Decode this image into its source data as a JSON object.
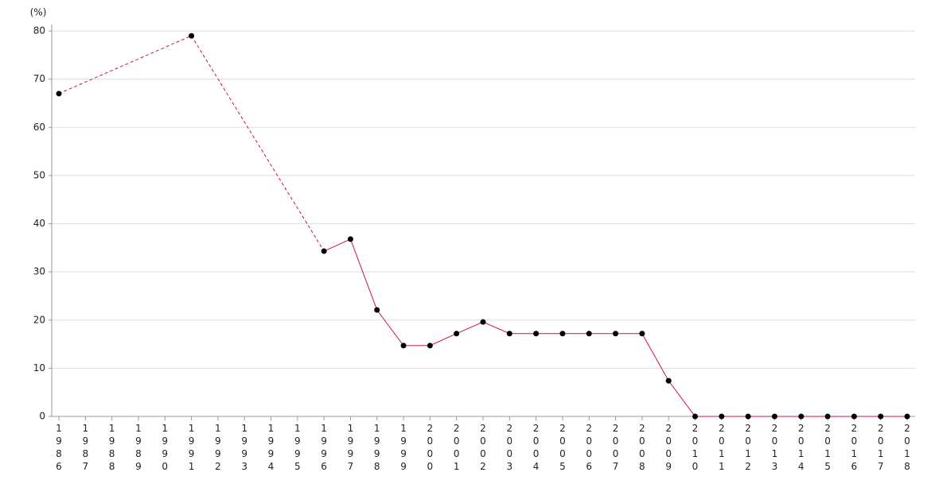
{
  "chart_data": {
    "type": "line",
    "y_axis_label": "(%)",
    "categories": [
      "1986",
      "1987",
      "1988",
      "1989",
      "1990",
      "1991",
      "1992",
      "1993",
      "1994",
      "1995",
      "1996",
      "1997",
      "1998",
      "1999",
      "2000",
      "2001",
      "2002",
      "2003",
      "2004",
      "2005",
      "2006",
      "2007",
      "2008",
      "2009",
      "2010",
      "2011",
      "2012",
      "2013",
      "2014",
      "2015",
      "2016",
      "2017",
      "2018"
    ],
    "series": [
      {
        "color": "#d0104c",
        "values": [
          67,
          null,
          null,
          null,
          null,
          79,
          null,
          null,
          null,
          null,
          34.3,
          36.8,
          22.1,
          14.7,
          14.7,
          17.2,
          19.6,
          17.2,
          17.2,
          17.2,
          17.2,
          17.2,
          17.2,
          7.4,
          0,
          0,
          0,
          0,
          0,
          0,
          0,
          0,
          0
        ]
      }
    ],
    "gap_line": "dashed",
    "ylim": [
      0,
      80
    ],
    "yticks": [
      0,
      10,
      20,
      30,
      40,
      50,
      60,
      70,
      80
    ],
    "grid": true
  }
}
